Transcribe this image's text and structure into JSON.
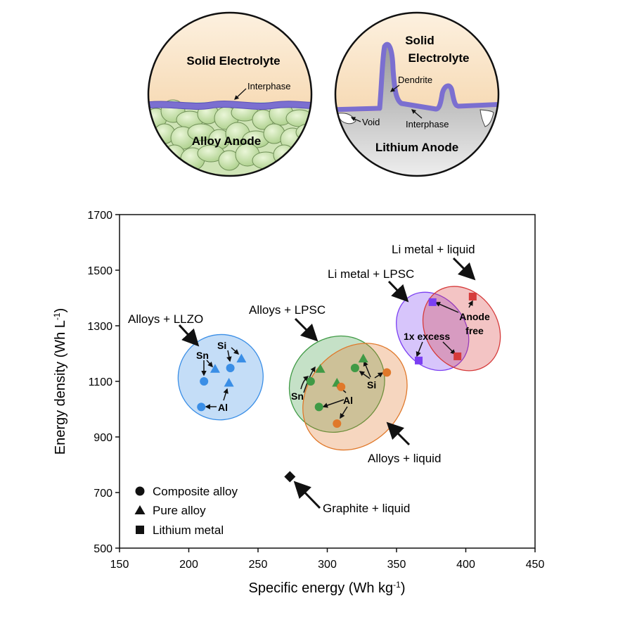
{
  "figure": {
    "left_panel": {
      "top_label": "Solid Electrolyte",
      "interphase_label": "Interphase",
      "bottom_label": "Alloy Anode"
    },
    "right_panel": {
      "top_label_line1": "Solid",
      "top_label_line2": "Electrolyte",
      "dendrite_label": "Dendrite",
      "void_label": "Void",
      "interphase_label": "Interphase",
      "bottom_label": "Lithium Anode"
    }
  },
  "chart_data": {
    "type": "scatter",
    "xlabel": "Specific energy (Wh kg",
    "xlabel_sup": "-1",
    "xlabel_end": ")",
    "ylabel": "Energy density (Wh L",
    "ylabel_sup": "-1",
    "ylabel_end": ")",
    "xlim": [
      150,
      450
    ],
    "ylim": [
      500,
      1700
    ],
    "xticks": [
      150,
      200,
      250,
      300,
      350,
      400,
      450
    ],
    "yticks": [
      500,
      700,
      900,
      1100,
      1300,
      1500,
      1700
    ],
    "colors": {
      "llzo": "#3a8ee6",
      "lpsc": "#3f9a45",
      "liquid": "#e0782a",
      "li_lpsc": "#7b3ff2",
      "li_liquid": "#d63b3b",
      "graphite": "#111111"
    },
    "series": [
      {
        "name": "Alloys + LLZO / composite",
        "marker": "circle",
        "color": "#3a8ee6",
        "points": [
          {
            "label": "Sn",
            "x": 211,
            "y": 1100
          },
          {
            "label": "Si",
            "x": 230,
            "y": 1148
          },
          {
            "label": "Al",
            "x": 209,
            "y": 1008
          }
        ]
      },
      {
        "name": "Alloys + LLZO / pure",
        "marker": "triangle",
        "color": "#3a8ee6",
        "points": [
          {
            "label": "Sn",
            "x": 219,
            "y": 1145
          },
          {
            "label": "Si",
            "x": 238,
            "y": 1182
          },
          {
            "label": "Al",
            "x": 229,
            "y": 1095
          }
        ]
      },
      {
        "name": "Alloys + LPSC / composite",
        "marker": "circle",
        "color": "#3f9a45",
        "points": [
          {
            "label": "Sn",
            "x": 288,
            "y": 1100
          },
          {
            "label": "Si",
            "x": 320,
            "y": 1148
          },
          {
            "label": "Al",
            "x": 294,
            "y": 1008
          }
        ]
      },
      {
        "name": "Alloys + LPSC / pure",
        "marker": "triangle",
        "color": "#3f9a45",
        "points": [
          {
            "label": "Sn",
            "x": 295,
            "y": 1145
          },
          {
            "label": "Si",
            "x": 326,
            "y": 1182
          },
          {
            "label": "Al",
            "x": 307,
            "y": 1095
          }
        ]
      },
      {
        "name": "Alloys + liquid / composite",
        "marker": "circle",
        "color": "#e0782a",
        "points": [
          {
            "label": "Sn",
            "x": 310,
            "y": 1080
          },
          {
            "label": "Si",
            "x": 343,
            "y": 1132
          },
          {
            "label": "Al",
            "x": 307,
            "y": 948
          }
        ]
      },
      {
        "name": "Li metal + LPSC",
        "marker": "square",
        "color": "#7b3ff2",
        "points": [
          {
            "label": "Anode free",
            "x": 376,
            "y": 1385
          },
          {
            "label": "1x excess",
            "x": 366,
            "y": 1175
          }
        ]
      },
      {
        "name": "Li metal + liquid",
        "marker": "square",
        "color": "#d63b3b",
        "points": [
          {
            "label": "Anode free",
            "x": 405,
            "y": 1405
          },
          {
            "label": "1x excess",
            "x": 394,
            "y": 1190
          }
        ]
      },
      {
        "name": "Graphite + liquid",
        "marker": "diamond",
        "color": "#111111",
        "points": [
          {
            "label": "Graphite",
            "x": 273,
            "y": 757
          }
        ]
      }
    ],
    "group_labels": {
      "llzo": "Alloys + LLZO",
      "lpsc": "Alloys + LPSC",
      "liquid": "Alloys + liquid",
      "li_lpsc": "Li metal + LPSC",
      "li_liquid": "Li metal + liquid",
      "graphite": "Graphite + liquid"
    },
    "point_labels": {
      "sn": "Sn",
      "si": "Si",
      "al": "Al",
      "one_x_excess": "1x excess",
      "anode": "Anode",
      "free": "free"
    },
    "legend": {
      "position": "bottom-left",
      "items": [
        {
          "marker": "circle",
          "label": "Composite alloy"
        },
        {
          "marker": "triangle",
          "label": "Pure alloy"
        },
        {
          "marker": "square",
          "label": "Lithium metal"
        }
      ]
    }
  }
}
